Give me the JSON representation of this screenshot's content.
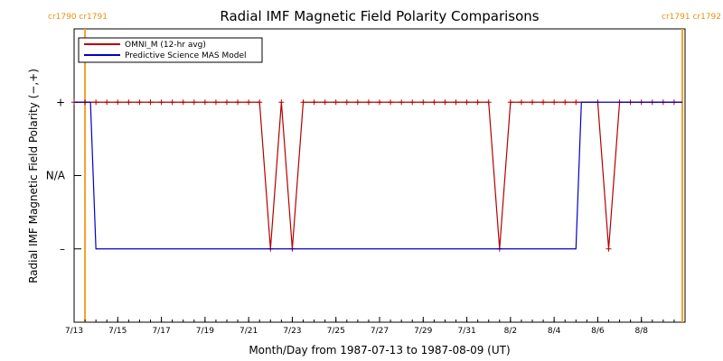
{
  "chart_data": {
    "type": "line",
    "title": "Radial IMF Magnetic Field Polarity Comparisons",
    "xlabel": "Month/Day from 1987-07-13 to 1987-08-09 (UT)",
    "ylabel": "Radial IMF Magnetic Field Polarity (−,+)",
    "xlim": [
      "1987-07-13",
      "1987-08-10"
    ],
    "ylim": [
      -2,
      2
    ],
    "grid": false,
    "legend_position": "top-left",
    "x_ticks": [
      "1987-07-13",
      "1987-07-15",
      "1987-07-17",
      "1987-07-19",
      "1987-07-21",
      "1987-07-23",
      "1987-07-25",
      "1987-07-27",
      "1987-07-29",
      "1987-07-31",
      "1987-08-02",
      "1987-08-04",
      "1987-08-06",
      "1987-08-08"
    ],
    "x_tick_labels": [
      "7/13",
      "7/15",
      "7/17",
      "7/19",
      "7/21",
      "7/23",
      "7/25",
      "7/27",
      "7/29",
      "7/31",
      "8/2",
      "8/4",
      "8/6",
      "8/8"
    ],
    "y_ticks": [
      1,
      0,
      -1
    ],
    "y_tick_labels": [
      "+",
      "N/A",
      "–"
    ],
    "carrington_markers": [
      {
        "label": "cr1790 cr1791",
        "x": "1987-07-13 12:00",
        "color": "#f5a028"
      },
      {
        "label": "cr1791 cr1792",
        "x": "1987-08-09 21:00",
        "color": "#f5a028"
      }
    ],
    "series": [
      {
        "name": "OMNI_M (12-hr avg)",
        "color": "#b40000",
        "marker": "+",
        "segments": [
          {
            "start": "1987-07-13 00:00",
            "end": "1987-07-21 12:00",
            "value": 1
          },
          {
            "start": "1987-07-22 00:00",
            "end": "1987-07-22 00:00",
            "value": -1
          },
          {
            "start": "1987-07-22 12:00",
            "end": "1987-07-22 12:00",
            "value": 1
          },
          {
            "start": "1987-07-23 00:00",
            "end": "1987-07-23 00:00",
            "value": -1
          },
          {
            "start": "1987-07-23 12:00",
            "end": "1987-08-01 00:00",
            "value": 1
          },
          {
            "start": "1987-08-01 12:00",
            "end": "1987-08-01 12:00",
            "value": -1
          },
          {
            "start": "1987-08-02 00:00",
            "end": "1987-08-05 00:00",
            "value": 1
          },
          {
            "start": "1987-08-06 00:00",
            "end": "1987-08-06 00:00",
            "value": 1
          },
          {
            "start": "1987-08-06 12:00",
            "end": "1987-08-06 12:00",
            "value": -1
          },
          {
            "start": "1987-08-07 00:00",
            "end": "1987-08-09 21:00",
            "value": 1
          }
        ]
      },
      {
        "name": "Predictive Science MAS Model",
        "color": "#0000c8",
        "marker": "",
        "segments": [
          {
            "start": "1987-07-13 00:00",
            "end": "1987-07-13 18:00",
            "value": 1
          },
          {
            "start": "1987-07-14 00:00",
            "end": "1987-08-05 00:00",
            "value": -1
          },
          {
            "start": "1987-08-05 06:00",
            "end": "1987-08-09 21:00",
            "value": 1
          }
        ]
      }
    ]
  }
}
